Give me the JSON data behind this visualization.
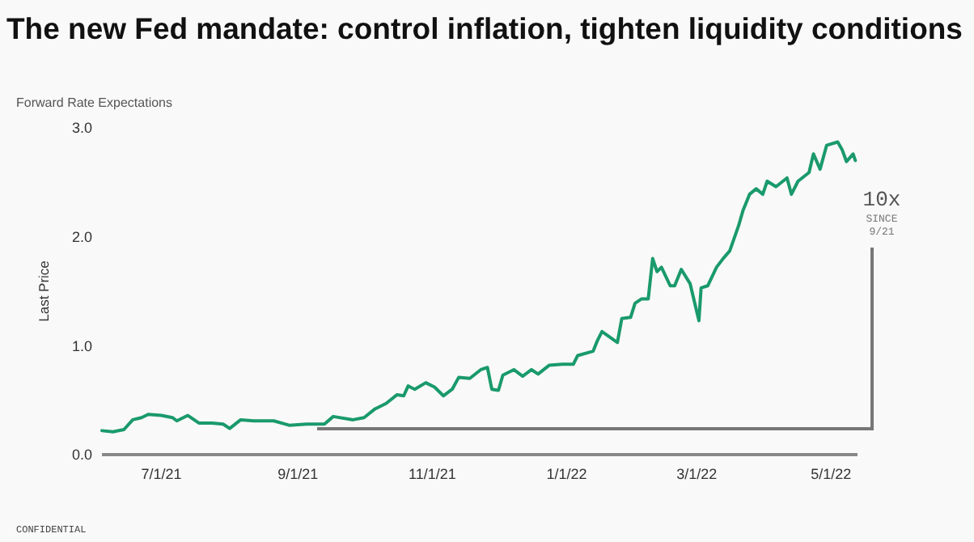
{
  "chart_data": {
    "type": "line",
    "title": "The new Fed mandate: control inflation, tighten liquidity conditions",
    "subtitle": "Forward Rate Expectations",
    "ylabel": "Last Price",
    "x": [
      "2021-06-04",
      "2021-06-09",
      "2021-06-14",
      "2021-06-18",
      "2021-06-22",
      "2021-06-25",
      "2021-07-01",
      "2021-07-06",
      "2021-07-08",
      "2021-07-13",
      "2021-07-18",
      "2021-07-24",
      "2021-07-29",
      "2021-08-01",
      "2021-08-06",
      "2021-08-12",
      "2021-08-21",
      "2021-08-28",
      "2021-09-05",
      "2021-09-13",
      "2021-09-17",
      "2021-09-26",
      "2021-10-01",
      "2021-10-06",
      "2021-10-11",
      "2021-10-16",
      "2021-10-19",
      "2021-10-21",
      "2021-10-24",
      "2021-10-29",
      "2021-11-02",
      "2021-11-06",
      "2021-11-10",
      "2021-11-13",
      "2021-11-18",
      "2021-11-23",
      "2021-11-26",
      "2021-11-28",
      "2021-12-01",
      "2021-12-03",
      "2021-12-08",
      "2021-12-12",
      "2021-12-16",
      "2021-12-19",
      "2021-12-24",
      "2021-12-30",
      "2022-01-04",
      "2022-01-06",
      "2022-01-13",
      "2022-01-15",
      "2022-01-17",
      "2022-01-24",
      "2022-01-26",
      "2022-01-30",
      "2022-02-01",
      "2022-02-04",
      "2022-02-07",
      "2022-02-09",
      "2022-02-11",
      "2022-02-13",
      "2022-02-17",
      "2022-02-19",
      "2022-02-22",
      "2022-02-26",
      "2022-03-02",
      "2022-03-03",
      "2022-03-06",
      "2022-03-10",
      "2022-03-13",
      "2022-03-16",
      "2022-03-20",
      "2022-03-22",
      "2022-03-25",
      "2022-03-28",
      "2022-03-31",
      "2022-04-02",
      "2022-04-06",
      "2022-04-11",
      "2022-04-13",
      "2022-04-16",
      "2022-04-21",
      "2022-04-23",
      "2022-04-26",
      "2022-04-29",
      "2022-05-04",
      "2022-05-06",
      "2022-05-08",
      "2022-05-11",
      "2022-05-12"
    ],
    "series": [
      {
        "color": "#1a9a6c",
        "values": [
          0.22,
          0.21,
          0.23,
          0.32,
          0.34,
          0.37,
          0.36,
          0.34,
          0.31,
          0.36,
          0.29,
          0.29,
          0.28,
          0.24,
          0.32,
          0.31,
          0.31,
          0.27,
          0.28,
          0.28,
          0.35,
          0.32,
          0.34,
          0.42,
          0.47,
          0.55,
          0.54,
          0.63,
          0.6,
          0.66,
          0.62,
          0.54,
          0.6,
          0.71,
          0.7,
          0.78,
          0.8,
          0.6,
          0.59,
          0.73,
          0.78,
          0.72,
          0.78,
          0.74,
          0.82,
          0.83,
          0.83,
          0.91,
          0.95,
          1.05,
          1.13,
          1.03,
          1.25,
          1.26,
          1.39,
          1.43,
          1.43,
          1.8,
          1.68,
          1.72,
          1.55,
          1.55,
          1.7,
          1.57,
          1.23,
          1.53,
          1.55,
          1.72,
          1.8,
          1.87,
          2.1,
          2.24,
          2.39,
          2.44,
          2.39,
          2.51,
          2.46,
          2.54,
          2.39,
          2.51,
          2.59,
          2.76,
          2.62,
          2.84,
          2.87,
          2.8,
          2.69,
          2.76,
          2.7
        ]
      }
    ],
    "xlim": [
      "2021-06-04",
      "2022-05-13"
    ],
    "xticks": [
      {
        "value": "2021-07-01",
        "label": "7/1/21"
      },
      {
        "value": "2021-09-01",
        "label": "9/1/21"
      },
      {
        "value": "2021-11-01",
        "label": "11/1/21"
      },
      {
        "value": "2022-01-01",
        "label": "1/1/22"
      },
      {
        "value": "2022-03-01",
        "label": "3/1/22"
      },
      {
        "value": "2022-05-01",
        "label": "5/1/22"
      }
    ],
    "ylim": [
      0,
      3
    ],
    "yticks": [
      {
        "value": 0,
        "label": "0.0"
      },
      {
        "value": 1,
        "label": "1.0"
      },
      {
        "value": 2,
        "label": "2.0"
      },
      {
        "value": 3,
        "label": "3.0"
      }
    ],
    "grid": false,
    "annotations": [
      "10x",
      "SINCE 9/21",
      "CONFIDENTIAL"
    ]
  }
}
